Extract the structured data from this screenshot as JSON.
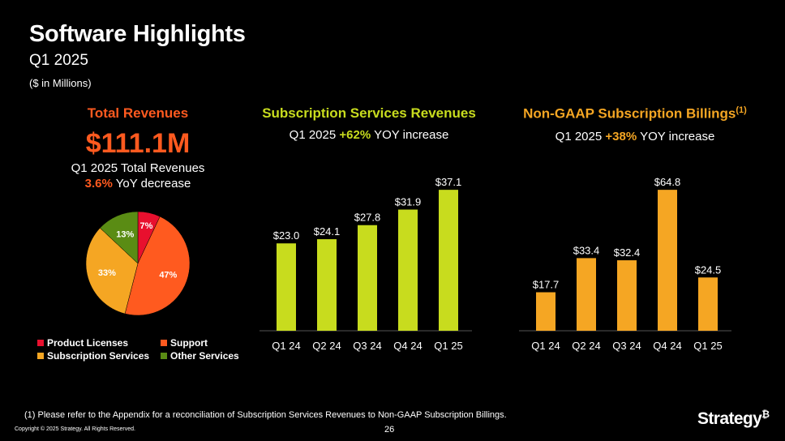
{
  "header": {
    "title": "Software Highlights",
    "subtitle": "Q1 2025",
    "units_note": "($ in Millions)"
  },
  "total_revenues": {
    "title": "Total Revenues",
    "big_value": "$111.1M",
    "line1": "Q1 2025 Total Revenues",
    "change_pct": "3.6%",
    "change_text": " YoY decrease"
  },
  "subscription_services": {
    "title": "Subscription Services Revenues",
    "sub_prefix": "Q1 2025 ",
    "sub_pct": "+62%",
    "sub_suffix": " YOY increase"
  },
  "subscription_billings": {
    "title": "Non-GAAP Subscription Billings",
    "title_sup": "(1)",
    "sub_prefix": "Q1 2025 ",
    "sub_pct": "+38%",
    "sub_suffix": " YOY increase"
  },
  "legend": [
    {
      "label": "Product Licenses",
      "color": "#e8102e"
    },
    {
      "label": "Support",
      "color": "#ff5a1f"
    },
    {
      "label": "Subscription Services",
      "color": "#f5a623"
    },
    {
      "label": "Other Services",
      "color": "#5a8c14"
    }
  ],
  "footer": {
    "footnote": "(1) Please refer to the Appendix for a reconciliation of Subscription Services Revenues to Non-GAAP Subscription Billings.",
    "copyright": "Copyright © 2025 Strategy. All Rights Reserved.",
    "page_number": "26",
    "logo_text": "Strategy",
    "logo_mark": "₿"
  },
  "chart_data": [
    {
      "type": "pie",
      "title": "Total Revenues",
      "series": [
        {
          "name": "Product Licenses",
          "value": 7,
          "label": "7%",
          "color": "#e8102e"
        },
        {
          "name": "Support",
          "value": 47,
          "label": "47%",
          "color": "#ff5a1f"
        },
        {
          "name": "Subscription Services",
          "value": 33,
          "label": "33%",
          "color": "#f5a623"
        },
        {
          "name": "Other Services",
          "value": 13,
          "label": "13%",
          "color": "#5a8c14"
        }
      ]
    },
    {
      "type": "bar",
      "title": "Subscription Services Revenues",
      "categories": [
        "Q1 24",
        "Q2 24",
        "Q3 24",
        "Q4 24",
        "Q1 25"
      ],
      "values": [
        23.0,
        24.1,
        27.8,
        31.9,
        37.1
      ],
      "labels": [
        "$23.0",
        "$24.1",
        "$27.8",
        "$31.9",
        "$37.1"
      ],
      "color": "#c8dc1e"
    },
    {
      "type": "bar",
      "title": "Non-GAAP Subscription Billings",
      "categories": [
        "Q1 24",
        "Q2 24",
        "Q3 24",
        "Q4 24",
        "Q1 25"
      ],
      "values": [
        17.7,
        33.4,
        32.4,
        64.8,
        24.5
      ],
      "labels": [
        "$17.7",
        "$33.4",
        "$32.4",
        "$64.8",
        "$24.5"
      ],
      "color": "#f5a623"
    }
  ]
}
